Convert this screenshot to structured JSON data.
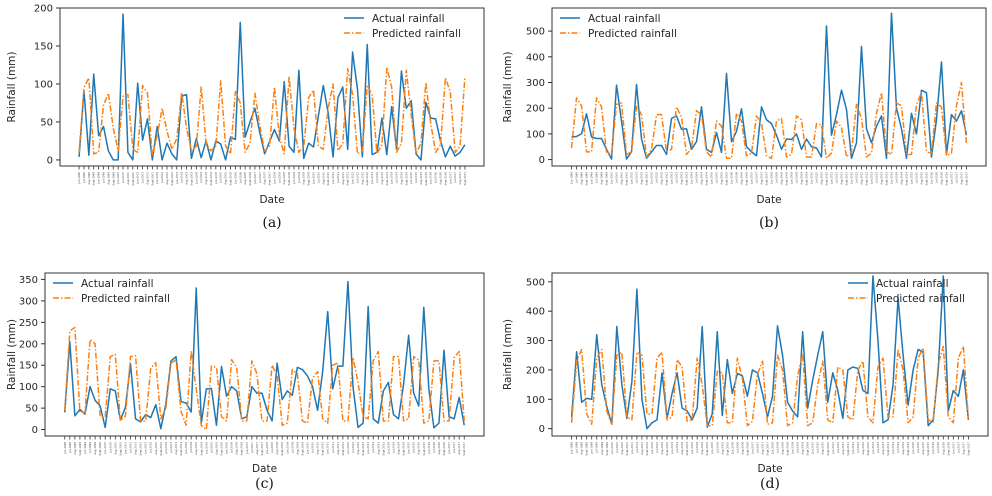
{
  "colors": {
    "actual": "#1f77b4",
    "predicted": "#ff7f0e",
    "frame": "#333333"
  },
  "chart_data": [
    {
      "id": "a",
      "caption": "(a)",
      "type": "line",
      "xlabel": "Date",
      "ylabel": "Rainfall (mm)",
      "ylim": [
        -8,
        200
      ],
      "yticks": [
        0,
        50,
        100,
        150,
        200
      ],
      "legend": "top-right",
      "series": [
        {
          "name": "Actual rainfall",
          "style": "solid",
          "values": [
            4,
            91,
            6,
            113,
            32,
            44,
            12,
            0,
            0,
            192,
            10,
            0,
            101,
            26,
            54,
            0,
            44,
            0,
            22,
            8,
            0,
            84,
            86,
            2,
            28,
            3,
            25,
            0,
            25,
            21,
            0,
            30,
            27,
            181,
            30,
            50,
            68,
            36,
            8,
            24,
            40,
            25,
            103,
            18,
            10,
            118,
            2,
            22,
            17,
            58,
            98,
            62,
            4,
            82,
            96,
            14,
            142,
            93,
            4,
            152,
            7,
            10,
            55,
            7,
            70,
            14,
            117,
            68,
            78,
            8,
            0,
            76,
            55,
            54,
            25,
            4,
            18,
            5,
            10,
            20
          ]
        },
        {
          "name": "Predicted rainfall",
          "style": "dashdot",
          "values": [
            10,
            95,
            108,
            8,
            10,
            72,
            88,
            42,
            12,
            84,
            86,
            14,
            10,
            98,
            88,
            5,
            32,
            68,
            38,
            14,
            28,
            89,
            42,
            12,
            18,
            96,
            22,
            12,
            18,
            104,
            18,
            8,
            90,
            75,
            10,
            22,
            88,
            45,
            12,
            18,
            96,
            30,
            8,
            110,
            42,
            10,
            18,
            82,
            92,
            18,
            14,
            68,
            100,
            12,
            22,
            120,
            86,
            8,
            12,
            98,
            86,
            8,
            20,
            122,
            96,
            10,
            22,
            118,
            60,
            8,
            22,
            102,
            48,
            10,
            20,
            108,
            90,
            10,
            18,
            110
          ]
        }
      ]
    },
    {
      "id": "b",
      "caption": "(b)",
      "type": "line",
      "xlabel": "Date",
      "ylabel": "Rainfall (mm)",
      "ylim": [
        -25,
        590
      ],
      "yticks": [
        0,
        100,
        200,
        300,
        400,
        500
      ],
      "legend": "top-left",
      "series": [
        {
          "name": "Actual rainfall",
          "style": "solid",
          "values": [
            88,
            90,
            100,
            178,
            88,
            82,
            82,
            40,
            2,
            290,
            150,
            2,
            30,
            292,
            80,
            5,
            30,
            55,
            55,
            20,
            160,
            170,
            118,
            120,
            40,
            70,
            205,
            40,
            28,
            105,
            28,
            335,
            70,
            110,
            198,
            50,
            30,
            15,
            205,
            155,
            140,
            95,
            40,
            80,
            78,
            100,
            40,
            80,
            50,
            45,
            10,
            520,
            95,
            175,
            270,
            195,
            5,
            65,
            440,
            120,
            65,
            130,
            170,
            5,
            570,
            200,
            120,
            5,
            180,
            100,
            270,
            260,
            10,
            155,
            380,
            20,
            175,
            150,
            190,
            95
          ]
        },
        {
          "name": "Predicted rainfall",
          "style": "dashdot",
          "values": [
            45,
            240,
            210,
            30,
            30,
            240,
            205,
            30,
            20,
            215,
            220,
            20,
            30,
            210,
            175,
            10,
            40,
            175,
            175,
            30,
            40,
            205,
            165,
            20,
            45,
            190,
            175,
            30,
            10,
            150,
            130,
            5,
            5,
            180,
            150,
            15,
            25,
            170,
            140,
            15,
            5,
            150,
            160,
            10,
            20,
            170,
            155,
            10,
            10,
            140,
            135,
            5,
            25,
            150,
            125,
            10,
            30,
            215,
            160,
            10,
            25,
            180,
            260,
            30,
            20,
            220,
            210,
            20,
            20,
            215,
            260,
            30,
            25,
            220,
            205,
            15,
            25,
            210,
            300,
            60
          ]
        }
      ]
    },
    {
      "id": "c",
      "caption": "(c)",
      "type": "line",
      "xlabel": "Date",
      "ylabel": "Rainfall (mm)",
      "ylim": [
        -15,
        365
      ],
      "yticks": [
        0,
        50,
        100,
        150,
        200,
        250,
        300,
        350
      ],
      "legend": "top-left",
      "series": [
        {
          "name": "Actual rainfall",
          "style": "solid",
          "values": [
            40,
            205,
            32,
            47,
            36,
            100,
            68,
            55,
            5,
            95,
            90,
            22,
            52,
            153,
            25,
            18,
            35,
            28,
            58,
            2,
            60,
            160,
            170,
            65,
            62,
            41,
            330,
            15,
            95,
            96,
            10,
            147,
            78,
            100,
            90,
            25,
            30,
            100,
            85,
            85,
            45,
            20,
            155,
            70,
            90,
            80,
            145,
            140,
            125,
            100,
            45,
            135,
            275,
            95,
            148,
            148,
            345,
            100,
            5,
            15,
            287,
            25,
            15,
            90,
            110,
            35,
            25,
            105,
            220,
            85,
            55,
            285,
            95,
            4,
            15,
            185,
            30,
            25,
            75,
            10
          ]
        },
        {
          "name": "Predicted rainfall",
          "style": "dashdot",
          "values": [
            45,
            230,
            238,
            40,
            40,
            210,
            200,
            30,
            30,
            170,
            175,
            20,
            32,
            170,
            172,
            20,
            20,
            143,
            156,
            25,
            50,
            155,
            163,
            42,
            10,
            183,
            95,
            10,
            0,
            148,
            145,
            30,
            20,
            163,
            145,
            20,
            20,
            160,
            130,
            20,
            20,
            150,
            125,
            10,
            15,
            140,
            130,
            20,
            15,
            120,
            135,
            25,
            15,
            150,
            155,
            20,
            20,
            168,
            110,
            30,
            25,
            160,
            182,
            20,
            20,
            170,
            170,
            20,
            25,
            170,
            162,
            15,
            20,
            160,
            160,
            20,
            20,
            168,
            182,
            20
          ]
        }
      ]
    },
    {
      "id": "d",
      "caption": "(d)",
      "type": "line",
      "xlabel": "Date",
      "ylabel": "Rainfall (mm)",
      "ylim": [
        -25,
        530
      ],
      "yticks": [
        0,
        100,
        200,
        300,
        400,
        500
      ],
      "legend": "top-right",
      "series": [
        {
          "name": "Actual rainfall",
          "style": "solid",
          "values": [
            40,
            262,
            90,
            103,
            100,
            320,
            150,
            75,
            15,
            348,
            150,
            35,
            160,
            475,
            100,
            0,
            20,
            30,
            190,
            35,
            120,
            190,
            70,
            60,
            30,
            70,
            348,
            5,
            50,
            330,
            45,
            235,
            120,
            188,
            180,
            110,
            200,
            190,
            120,
            40,
            110,
            350,
            250,
            90,
            60,
            40,
            330,
            70,
            165,
            250,
            330,
            90,
            190,
            130,
            35,
            200,
            210,
            205,
            130,
            120,
            520,
            300,
            20,
            30,
            150,
            445,
            250,
            80,
            200,
            270,
            260,
            10,
            30,
            200,
            520,
            60,
            130,
            110,
            200,
            30
          ]
        },
        {
          "name": "Predicted rainfall",
          "style": "dashdot",
          "values": [
            20,
            230,
            270,
            50,
            15,
            240,
            270,
            60,
            15,
            250,
            260,
            40,
            30,
            260,
            250,
            50,
            50,
            240,
            260,
            30,
            40,
            235,
            210,
            25,
            30,
            240,
            150,
            10,
            10,
            195,
            190,
            20,
            20,
            240,
            170,
            10,
            25,
            185,
            230,
            15,
            20,
            250,
            200,
            10,
            20,
            180,
            255,
            10,
            20,
            150,
            230,
            30,
            20,
            210,
            200,
            40,
            30,
            200,
            230,
            40,
            20,
            210,
            240,
            40,
            40,
            270,
            200,
            20,
            40,
            240,
            275,
            30,
            20,
            220,
            280,
            40,
            20,
            240,
            280,
            35
          ]
        }
      ]
    }
  ],
  "xtick_labels": [
    "Jun-1998",
    "Jul-1998",
    "Aug-1998",
    "Sept-1998",
    "Jun-1999",
    "Jul-1999",
    "Aug-1999",
    "Sept-1999",
    "Jun-2000",
    "Jul-2000",
    "Aug-2000",
    "Sept-2000",
    "Jun-2001",
    "Jul-2001",
    "Aug-2001",
    "Sept-2001",
    "Jun-2002",
    "Jul-2002",
    "Aug-2002",
    "Sept-2002",
    "Jun-2003",
    "Jul-2003",
    "Aug-2003",
    "Sept-2003",
    "Jun-2004",
    "Jul-2004",
    "Aug-2004",
    "Sept-2004",
    "Jun-2005",
    "Jul-2005",
    "Aug-2005",
    "Sept-2005",
    "Jun-2006",
    "Jul-2006",
    "Aug-2006",
    "Sept-2006",
    "Jun-2007",
    "Jul-2007",
    "Aug-2007",
    "Sept-2007",
    "Jun-2008",
    "Jul-2008",
    "Aug-2008",
    "Sept-2008",
    "Jun-2009",
    "Jul-2009",
    "Aug-2009",
    "Sept-2009",
    "Jun-2010",
    "Jul-2010",
    "Aug-2010",
    "Sept-2010",
    "Jun-2011",
    "Jul-2011",
    "Aug-2011",
    "Sept-2011",
    "Jun-2012",
    "Jul-2012",
    "Aug-2012",
    "Sept-2012",
    "Jun-2013",
    "Jul-2013",
    "Aug-2013",
    "Sept-2013",
    "Jun-2014",
    "Jul-2014",
    "Aug-2014",
    "Sept-2014",
    "Jun-2015",
    "Jul-2015",
    "Aug-2015",
    "Sept-2015",
    "Jun-2016",
    "Jul-2016",
    "Aug-2016",
    "Sept-2016",
    "Jun-2017",
    "Jul-2017",
    "Aug-2017",
    "Sept-2017"
  ]
}
